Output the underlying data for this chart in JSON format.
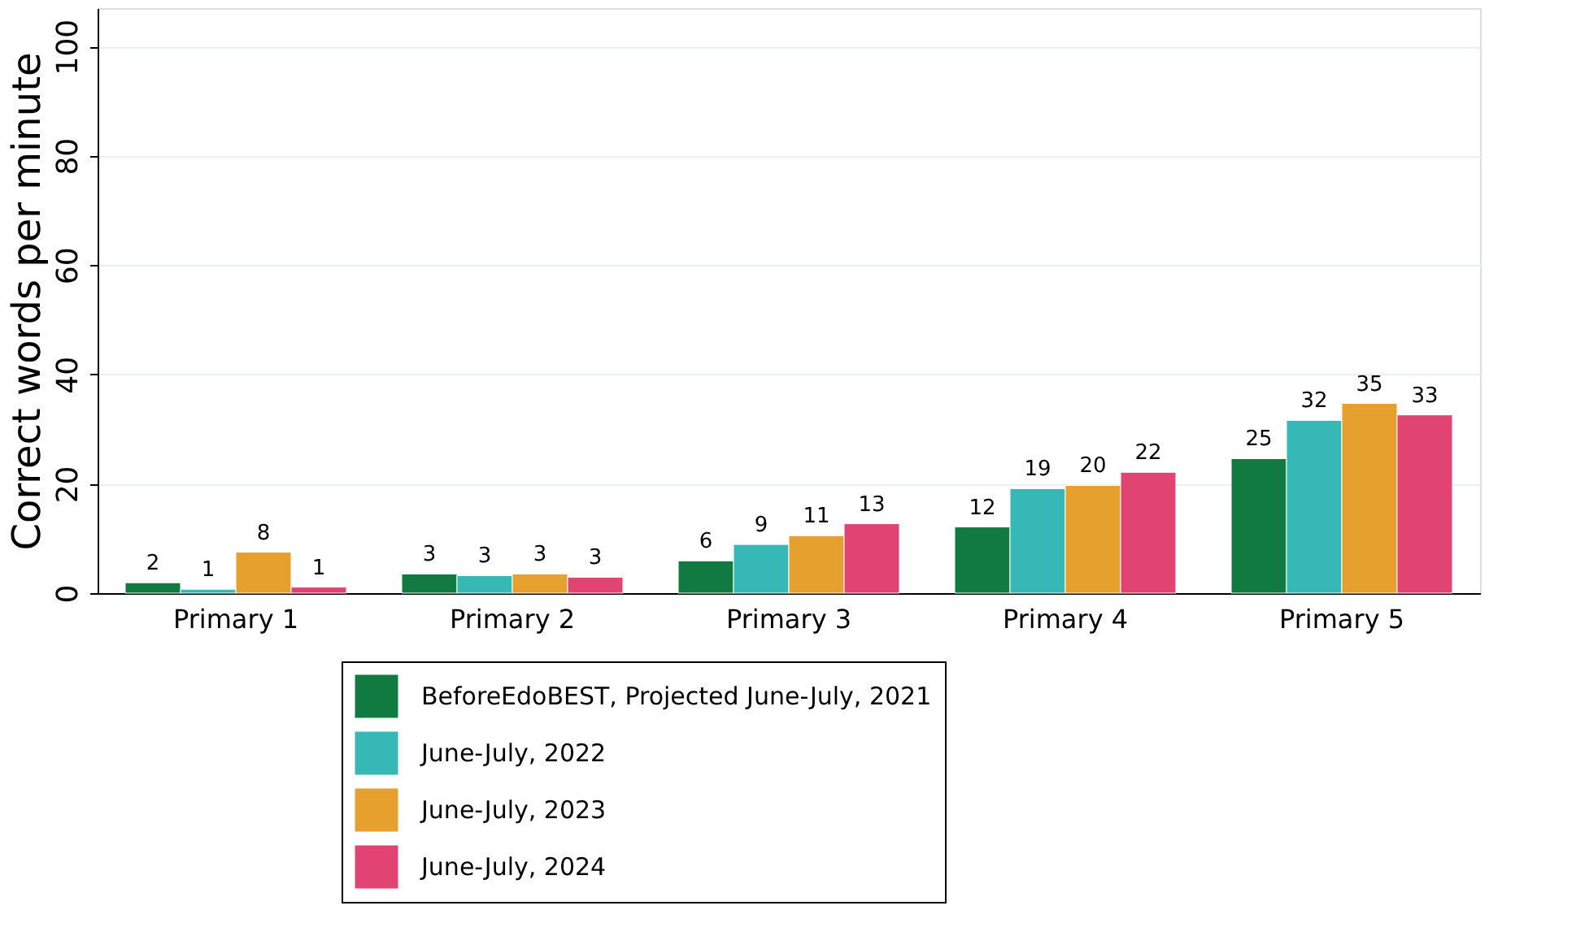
{
  "chart_data": {
    "type": "bar",
    "ylabel": "Correct words per minute",
    "categories": [
      "Primary 1",
      "Primary 2",
      "Primary 3",
      "Primary 4",
      "Primary 5"
    ],
    "series": [
      {
        "name": "BeforeEdoBEST, Projected June-July, 2021",
        "color": "#117a40",
        "values": [
          1.9,
          3.5,
          5.9,
          12.1,
          24.6
        ],
        "value_labels": [
          "2",
          "3",
          "6",
          "12",
          "25"
        ]
      },
      {
        "name": "June-July, 2022",
        "color": "#36b8b7",
        "values": [
          0.7,
          3.2,
          8.9,
          19.1,
          31.6
        ],
        "value_labels": [
          "1",
          "3",
          "9",
          "19",
          "32"
        ]
      },
      {
        "name": "June-July, 2023",
        "color": "#e5a02d",
        "values": [
          7.5,
          3.5,
          10.5,
          19.7,
          34.7
        ],
        "value_labels": [
          "8",
          "3",
          "11",
          "20",
          "35"
        ]
      },
      {
        "name": "June-July, 2024",
        "color": "#e14473",
        "values": [
          1.1,
          2.9,
          12.7,
          22.1,
          32.6
        ],
        "value_labels": [
          "1",
          "3",
          "13",
          "22",
          "33"
        ]
      }
    ],
    "ylim": [
      0,
      107
    ],
    "yticks": [
      0,
      20,
      40,
      60,
      80,
      100
    ],
    "grid": "y",
    "legend": "bottom"
  }
}
